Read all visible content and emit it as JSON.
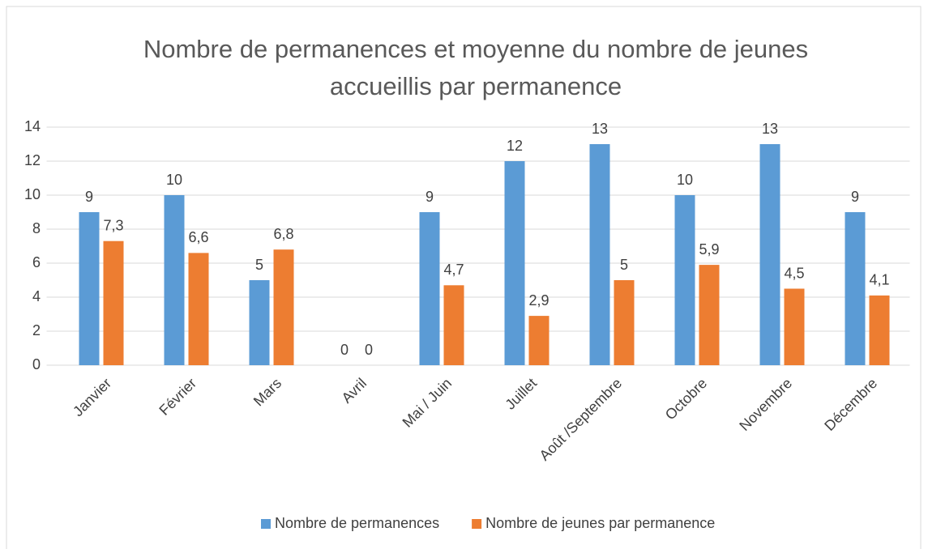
{
  "chart_data": {
    "type": "bar",
    "title": "Nombre de permanences et moyenne du nombre de jeunes accueillis par permanence",
    "categories": [
      "Janvier",
      "Février",
      "Mars",
      "Avril",
      "Mai / Juin",
      "Juillet",
      "Août /Septembre",
      "Octobre",
      "Novembre",
      "Décembre"
    ],
    "series": [
      {
        "name": "Nombre de permanences",
        "color": "#5b9bd5",
        "values": [
          9,
          10,
          5,
          0,
          9,
          12,
          13,
          10,
          13,
          9
        ]
      },
      {
        "name": "Nombre de jeunes par permanence",
        "color": "#ed7d31",
        "values": [
          7.3,
          6.6,
          6.8,
          0,
          4.7,
          2.9,
          5,
          5.9,
          4.5,
          4.1
        ],
        "value_labels": [
          "7,3",
          "6,6",
          "6,8",
          "0",
          "4,7",
          "2,9",
          "5",
          "5,9",
          "4,5",
          "4,1"
        ]
      }
    ],
    "ylim": [
      0,
      14
    ],
    "yticks": [
      0,
      2,
      4,
      6,
      8,
      10,
      12,
      14
    ],
    "grid": true,
    "legend": "bottom"
  }
}
